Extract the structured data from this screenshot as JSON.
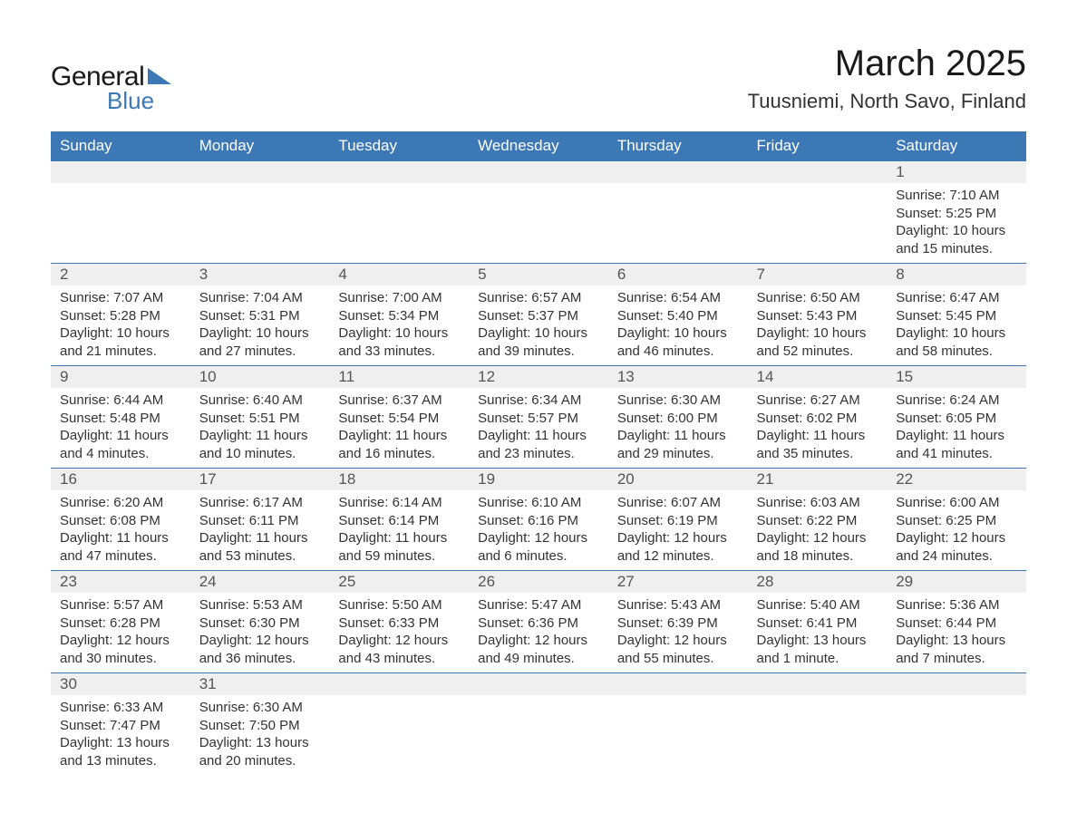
{
  "brand": {
    "text1": "General",
    "text2": "Blue",
    "triangle_color": "#3b78b5"
  },
  "title": {
    "month": "March 2025",
    "location": "Tuusniemi, North Savo, Finland"
  },
  "colors": {
    "header_bg": "#3b78b5",
    "header_fg": "#ffffff",
    "daynum_bg": "#efefef",
    "row_border": "#3b78b5",
    "text": "#333333"
  },
  "dayHeaders": [
    "Sunday",
    "Monday",
    "Tuesday",
    "Wednesday",
    "Thursday",
    "Friday",
    "Saturday"
  ],
  "weeks": [
    [
      null,
      null,
      null,
      null,
      null,
      null,
      {
        "n": "1",
        "sunrise": "7:10 AM",
        "sunset": "5:25 PM",
        "dl1": "Daylight: 10 hours",
        "dl2": "and 15 minutes."
      }
    ],
    [
      {
        "n": "2",
        "sunrise": "7:07 AM",
        "sunset": "5:28 PM",
        "dl1": "Daylight: 10 hours",
        "dl2": "and 21 minutes."
      },
      {
        "n": "3",
        "sunrise": "7:04 AM",
        "sunset": "5:31 PM",
        "dl1": "Daylight: 10 hours",
        "dl2": "and 27 minutes."
      },
      {
        "n": "4",
        "sunrise": "7:00 AM",
        "sunset": "5:34 PM",
        "dl1": "Daylight: 10 hours",
        "dl2": "and 33 minutes."
      },
      {
        "n": "5",
        "sunrise": "6:57 AM",
        "sunset": "5:37 PM",
        "dl1": "Daylight: 10 hours",
        "dl2": "and 39 minutes."
      },
      {
        "n": "6",
        "sunrise": "6:54 AM",
        "sunset": "5:40 PM",
        "dl1": "Daylight: 10 hours",
        "dl2": "and 46 minutes."
      },
      {
        "n": "7",
        "sunrise": "6:50 AM",
        "sunset": "5:43 PM",
        "dl1": "Daylight: 10 hours",
        "dl2": "and 52 minutes."
      },
      {
        "n": "8",
        "sunrise": "6:47 AM",
        "sunset": "5:45 PM",
        "dl1": "Daylight: 10 hours",
        "dl2": "and 58 minutes."
      }
    ],
    [
      {
        "n": "9",
        "sunrise": "6:44 AM",
        "sunset": "5:48 PM",
        "dl1": "Daylight: 11 hours",
        "dl2": "and 4 minutes."
      },
      {
        "n": "10",
        "sunrise": "6:40 AM",
        "sunset": "5:51 PM",
        "dl1": "Daylight: 11 hours",
        "dl2": "and 10 minutes."
      },
      {
        "n": "11",
        "sunrise": "6:37 AM",
        "sunset": "5:54 PM",
        "dl1": "Daylight: 11 hours",
        "dl2": "and 16 minutes."
      },
      {
        "n": "12",
        "sunrise": "6:34 AM",
        "sunset": "5:57 PM",
        "dl1": "Daylight: 11 hours",
        "dl2": "and 23 minutes."
      },
      {
        "n": "13",
        "sunrise": "6:30 AM",
        "sunset": "6:00 PM",
        "dl1": "Daylight: 11 hours",
        "dl2": "and 29 minutes."
      },
      {
        "n": "14",
        "sunrise": "6:27 AM",
        "sunset": "6:02 PM",
        "dl1": "Daylight: 11 hours",
        "dl2": "and 35 minutes."
      },
      {
        "n": "15",
        "sunrise": "6:24 AM",
        "sunset": "6:05 PM",
        "dl1": "Daylight: 11 hours",
        "dl2": "and 41 minutes."
      }
    ],
    [
      {
        "n": "16",
        "sunrise": "6:20 AM",
        "sunset": "6:08 PM",
        "dl1": "Daylight: 11 hours",
        "dl2": "and 47 minutes."
      },
      {
        "n": "17",
        "sunrise": "6:17 AM",
        "sunset": "6:11 PM",
        "dl1": "Daylight: 11 hours",
        "dl2": "and 53 minutes."
      },
      {
        "n": "18",
        "sunrise": "6:14 AM",
        "sunset": "6:14 PM",
        "dl1": "Daylight: 11 hours",
        "dl2": "and 59 minutes."
      },
      {
        "n": "19",
        "sunrise": "6:10 AM",
        "sunset": "6:16 PM",
        "dl1": "Daylight: 12 hours",
        "dl2": "and 6 minutes."
      },
      {
        "n": "20",
        "sunrise": "6:07 AM",
        "sunset": "6:19 PM",
        "dl1": "Daylight: 12 hours",
        "dl2": "and 12 minutes."
      },
      {
        "n": "21",
        "sunrise": "6:03 AM",
        "sunset": "6:22 PM",
        "dl1": "Daylight: 12 hours",
        "dl2": "and 18 minutes."
      },
      {
        "n": "22",
        "sunrise": "6:00 AM",
        "sunset": "6:25 PM",
        "dl1": "Daylight: 12 hours",
        "dl2": "and 24 minutes."
      }
    ],
    [
      {
        "n": "23",
        "sunrise": "5:57 AM",
        "sunset": "6:28 PM",
        "dl1": "Daylight: 12 hours",
        "dl2": "and 30 minutes."
      },
      {
        "n": "24",
        "sunrise": "5:53 AM",
        "sunset": "6:30 PM",
        "dl1": "Daylight: 12 hours",
        "dl2": "and 36 minutes."
      },
      {
        "n": "25",
        "sunrise": "5:50 AM",
        "sunset": "6:33 PM",
        "dl1": "Daylight: 12 hours",
        "dl2": "and 43 minutes."
      },
      {
        "n": "26",
        "sunrise": "5:47 AM",
        "sunset": "6:36 PM",
        "dl1": "Daylight: 12 hours",
        "dl2": "and 49 minutes."
      },
      {
        "n": "27",
        "sunrise": "5:43 AM",
        "sunset": "6:39 PM",
        "dl1": "Daylight: 12 hours",
        "dl2": "and 55 minutes."
      },
      {
        "n": "28",
        "sunrise": "5:40 AM",
        "sunset": "6:41 PM",
        "dl1": "Daylight: 13 hours",
        "dl2": "and 1 minute."
      },
      {
        "n": "29",
        "sunrise": "5:36 AM",
        "sunset": "6:44 PM",
        "dl1": "Daylight: 13 hours",
        "dl2": "and 7 minutes."
      }
    ],
    [
      {
        "n": "30",
        "sunrise": "6:33 AM",
        "sunset": "7:47 PM",
        "dl1": "Daylight: 13 hours",
        "dl2": "and 13 minutes."
      },
      {
        "n": "31",
        "sunrise": "6:30 AM",
        "sunset": "7:50 PM",
        "dl1": "Daylight: 13 hours",
        "dl2": "and 20 minutes."
      },
      null,
      null,
      null,
      null,
      null
    ]
  ],
  "labels": {
    "sunrise": "Sunrise:",
    "sunset": "Sunset:"
  }
}
